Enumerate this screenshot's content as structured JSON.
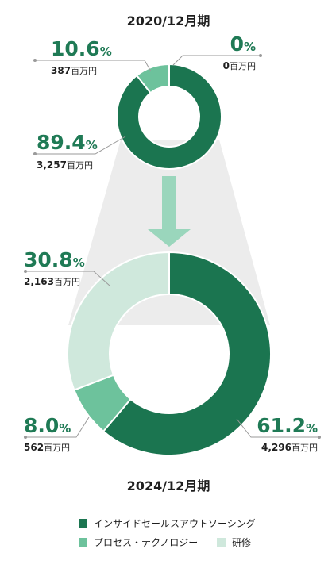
{
  "chart_data": [
    {
      "type": "pie",
      "title": "2020/12月期",
      "unit": "百万円",
      "slices": [
        {
          "name": "インサイドセールスアウトソーシング",
          "percent": "89.4",
          "amount": "3,257",
          "color": "#1b7550"
        },
        {
          "name": "プロセス・テクノロジー",
          "percent": "10.6",
          "amount": "387",
          "color": "#6dc29c"
        },
        {
          "name": "研修",
          "percent": "0",
          "amount": "0",
          "color": "#cfe8dc"
        }
      ]
    },
    {
      "type": "pie",
      "title": "2024/12月期",
      "unit": "百万円",
      "slices": [
        {
          "name": "インサイドセールスアウトソーシング",
          "percent": "61.2",
          "amount": "4,296",
          "color": "#1b7550"
        },
        {
          "name": "プロセス・テクノロジー",
          "percent": "8.0",
          "amount": "562",
          "color": "#6dc29c"
        },
        {
          "name": "研修",
          "percent": "30.8",
          "amount": "2,163",
          "color": "#cfe8dc"
        }
      ]
    }
  ],
  "legend": [
    {
      "label": "インサイドセールスアウトソーシング",
      "color": "#1b7550"
    },
    {
      "label": "プロセス・テクノロジー",
      "color": "#6dc29c"
    },
    {
      "label": "研修",
      "color": "#cfe8dc"
    }
  ],
  "percent_sign": "%"
}
